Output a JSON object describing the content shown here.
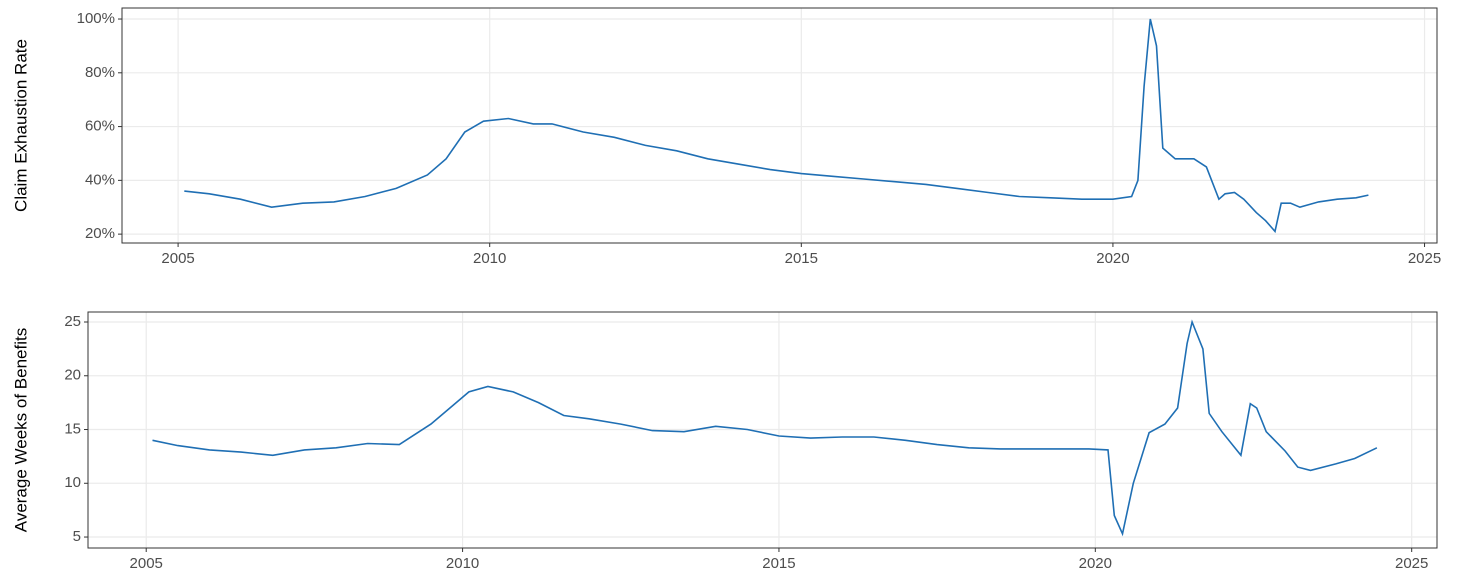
{
  "chart_data": [
    {
      "type": "line",
      "ylabel": "Claim Exhaustion Rate",
      "x": [
        2005.1,
        2005.5,
        2006.0,
        2006.5,
        2007.0,
        2007.5,
        2008.0,
        2008.5,
        2009.0,
        2009.3,
        2009.6,
        2009.9,
        2010.3,
        2010.7,
        2011.0,
        2011.5,
        2012.0,
        2012.5,
        2013.0,
        2013.5,
        2014.0,
        2014.5,
        2015.0,
        2015.5,
        2016.0,
        2016.5,
        2017.0,
        2017.5,
        2018.0,
        2018.5,
        2019.0,
        2019.5,
        2020.0,
        2020.3,
        2020.4,
        2020.5,
        2020.6,
        2020.7,
        2020.8,
        2021.0,
        2021.3,
        2021.5,
        2021.7,
        2021.8,
        2021.95,
        2022.1,
        2022.3,
        2022.45,
        2022.6,
        2022.7,
        2022.85,
        2023.0,
        2023.3,
        2023.6,
        2023.9,
        2024.1
      ],
      "series": [
        {
          "name": "Claim Exhaustion Rate",
          "color": "#1f6fb4",
          "values": [
            36,
            35,
            33,
            30,
            31.5,
            32,
            34,
            37,
            42,
            48,
            58,
            62,
            63,
            61,
            61,
            58,
            56,
            53,
            51,
            48,
            46,
            44,
            42.5,
            41.5,
            40.5,
            39.5,
            38.5,
            37,
            35.5,
            34,
            33.5,
            33,
            33,
            34,
            40,
            75,
            100,
            90,
            52,
            48,
            48,
            45,
            33,
            35,
            35.5,
            33,
            28,
            25,
            21,
            31.5,
            31.5,
            30,
            32,
            33,
            33.5,
            34.5
          ]
        }
      ],
      "xlim": [
        2004.1,
        2025.2
      ],
      "xticks": [
        2005,
        2010,
        2015,
        2020,
        2025
      ],
      "ylim": [
        16.7,
        104.1
      ],
      "yticks": [
        {
          "value": 20,
          "label": "20%"
        },
        {
          "value": 40,
          "label": "40%"
        },
        {
          "value": 60,
          "label": "60%"
        },
        {
          "value": 80,
          "label": "80%"
        },
        {
          "value": 100,
          "label": "100%"
        }
      ],
      "grid": true
    },
    {
      "type": "line",
      "ylabel": "Average Weeks of Benefits",
      "x": [
        2005.1,
        2005.5,
        2006.0,
        2006.5,
        2007.0,
        2007.5,
        2008.0,
        2008.5,
        2009.0,
        2009.5,
        2009.8,
        2010.1,
        2010.4,
        2010.8,
        2011.2,
        2011.6,
        2012.0,
        2012.5,
        2013.0,
        2013.5,
        2014.0,
        2014.5,
        2015.0,
        2015.5,
        2016.0,
        2016.5,
        2017.0,
        2017.5,
        2018.0,
        2018.5,
        2019.0,
        2019.5,
        2019.9,
        2020.2,
        2020.3,
        2020.43,
        2020.6,
        2020.85,
        2021.1,
        2021.3,
        2021.45,
        2021.53,
        2021.7,
        2021.8,
        2022.0,
        2022.3,
        2022.45,
        2022.55,
        2022.7,
        2023.0,
        2023.2,
        2023.4,
        2023.8,
        2024.1,
        2024.45
      ],
      "series": [
        {
          "name": "Average Weeks of Benefits",
          "color": "#1f6fb4",
          "values": [
            14,
            13.5,
            13.1,
            12.9,
            12.6,
            13.1,
            13.3,
            13.7,
            13.6,
            15.5,
            17,
            18.5,
            19,
            18.5,
            17.5,
            16.3,
            16,
            15.5,
            14.9,
            14.8,
            15.3,
            15,
            14.4,
            14.2,
            14.3,
            14.3,
            14,
            13.6,
            13.3,
            13.2,
            13.2,
            13.2,
            13.2,
            13.1,
            7,
            5.3,
            10,
            14.7,
            15.5,
            17,
            23,
            25,
            22.5,
            16.5,
            14.8,
            12.6,
            17.4,
            17,
            14.8,
            13,
            11.5,
            11.2,
            11.8,
            12.3,
            13.3
          ]
        }
      ],
      "xlim": [
        2004.08,
        2025.4
      ],
      "xticks": [
        2005,
        2010,
        2015,
        2020,
        2025
      ],
      "ylim": [
        3.98,
        25.93
      ],
      "yticks": [
        5,
        10,
        15,
        20,
        25
      ],
      "grid": true
    }
  ]
}
